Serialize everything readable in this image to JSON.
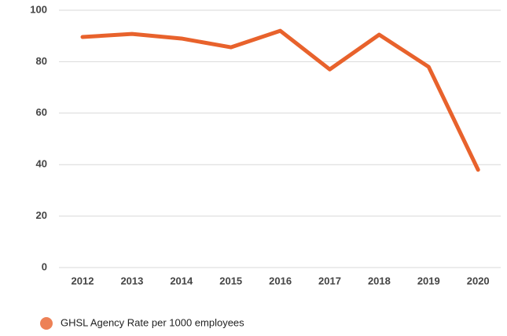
{
  "chart_data": {
    "type": "line",
    "categories": [
      "2012",
      "2013",
      "2014",
      "2015",
      "2016",
      "2017",
      "2018",
      "2019",
      "2020"
    ],
    "series": [
      {
        "name": "GHSL Agency Rate per 1000 employees",
        "color": "#e8622c",
        "values": [
          89.6,
          90.8,
          89,
          85.6,
          92,
          77,
          90.5,
          78,
          38
        ]
      }
    ],
    "ylim": [
      0,
      100
    ],
    "yticks": [
      0,
      20,
      40,
      60,
      80,
      100
    ],
    "grid": true,
    "legend": "bottom-left"
  }
}
